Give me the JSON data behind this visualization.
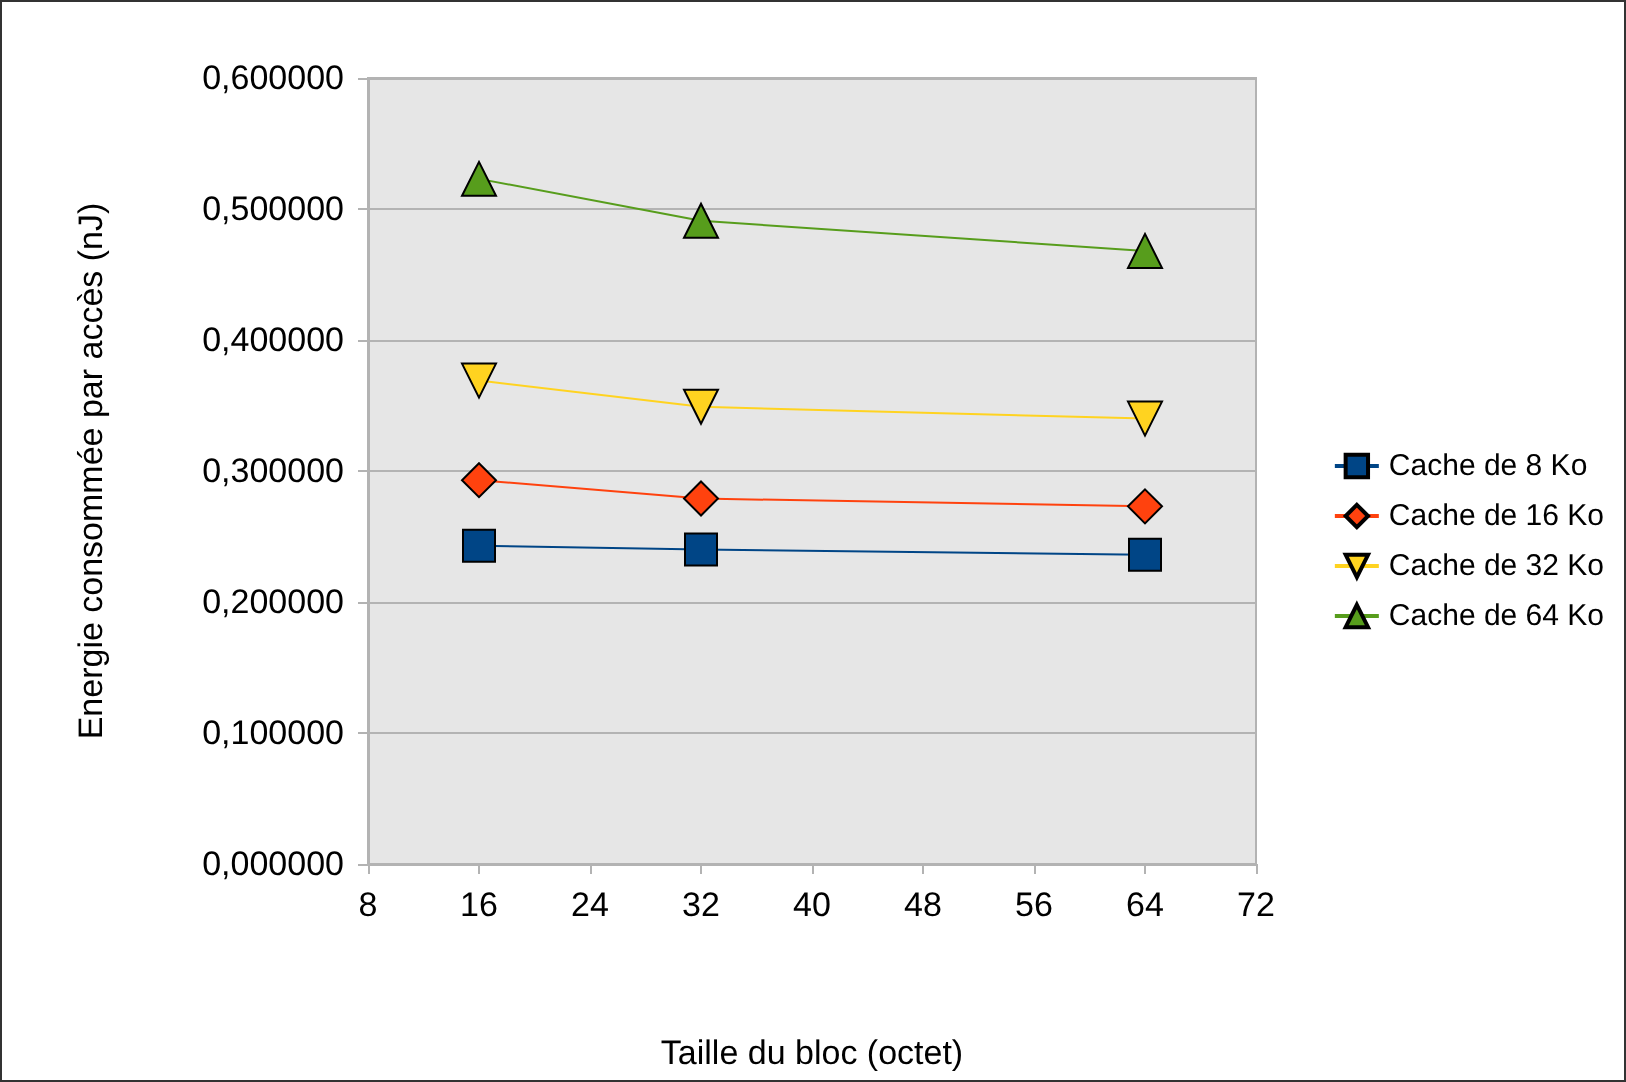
{
  "chart_data": {
    "type": "line",
    "xlabel": "Taille du bloc (octet)",
    "ylabel": "Energie consommée par accès (nJ)",
    "x": [
      16,
      32,
      64
    ],
    "series": [
      {
        "name": "Cache de 8 Ko",
        "color": "#004586",
        "marker": "square",
        "values": [
          0.243,
          0.24,
          0.236
        ]
      },
      {
        "name": "Cache de 16 Ko",
        "color": "#ff420e",
        "marker": "diamond",
        "values": [
          0.293,
          0.279,
          0.273
        ]
      },
      {
        "name": "Cache de 32 Ko",
        "color": "#ffd320",
        "marker": "triangle-down",
        "values": [
          0.369,
          0.349,
          0.34
        ]
      },
      {
        "name": "Cache de 64 Ko",
        "color": "#579d1c",
        "marker": "triangle",
        "values": [
          0.523,
          0.491,
          0.468
        ]
      }
    ],
    "xlim": [
      8,
      72
    ],
    "xticks": [
      8,
      16,
      24,
      32,
      40,
      48,
      56,
      64,
      72
    ],
    "ylim": [
      0,
      0.6
    ],
    "yticks": [
      {
        "value": 0,
        "label": "0,000000"
      },
      {
        "value": 0.1,
        "label": "0,100000"
      },
      {
        "value": 0.2,
        "label": "0,200000"
      },
      {
        "value": 0.3,
        "label": "0,300000"
      },
      {
        "value": 0.4,
        "label": "0,400000"
      },
      {
        "value": 0.5,
        "label": "0,500000"
      },
      {
        "value": 0.6,
        "label": "0,600000"
      }
    ],
    "grid": "y",
    "legend": "right",
    "line_style": "solid"
  }
}
